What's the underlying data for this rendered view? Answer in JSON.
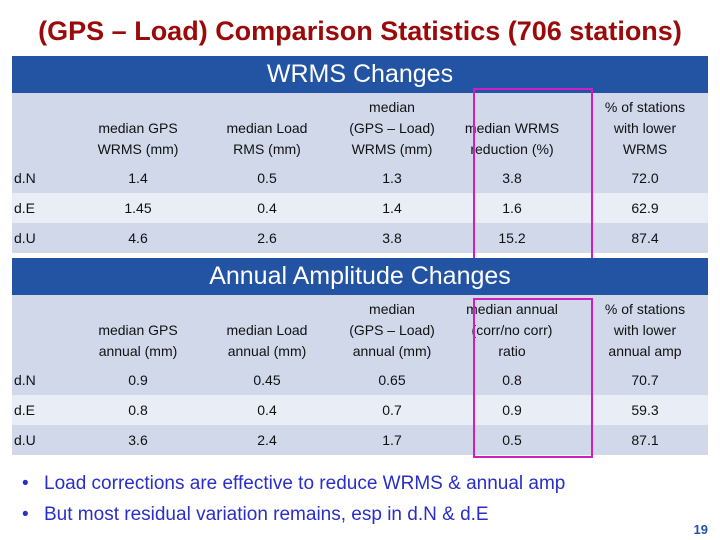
{
  "title": "(GPS – Load) Comparison Statistics (706 stations)",
  "wrms": {
    "section": "WRMS Changes",
    "headers": [
      "",
      "median GPS\nWRMS (mm)",
      "median Load\nRMS (mm)",
      "median\n(GPS – Load)\nWRMS (mm)",
      "median WRMS\nreduction (%)",
      "% of stations\nwith lower\nWRMS"
    ],
    "rows": [
      [
        "d.N",
        "1.4",
        "0.5",
        "1.3",
        "3.8",
        "72.0"
      ],
      [
        "d.E",
        "1.45",
        "0.4",
        "1.4",
        "1.6",
        "62.9"
      ],
      [
        "d.U",
        "4.6",
        "2.6",
        "3.8",
        "15.2",
        "87.4"
      ]
    ]
  },
  "annual": {
    "section": "Annual Amplitude Changes",
    "headers": [
      "",
      "median GPS\nannual (mm)",
      "median Load\nannual (mm)",
      "median\n(GPS – Load)\nannual (mm)",
      "median annual\n(corr/no corr)\nratio",
      "% of stations\nwith lower\nannual amp"
    ],
    "rows": [
      [
        "d.N",
        "0.9",
        "0.45",
        "0.65",
        "0.8",
        "70.7"
      ],
      [
        "d.E",
        "0.8",
        "0.4",
        "0.7",
        "0.9",
        "59.3"
      ],
      [
        "d.U",
        "3.6",
        "2.4",
        "1.7",
        "0.5",
        "87.1"
      ]
    ]
  },
  "bullets": [
    "Load corrections are effective to reduce WRMS & annual amp",
    "But most residual variation remains, esp in d.N & d.E"
  ],
  "bullet_symbol": "•",
  "page_number": "19",
  "colors": {
    "title": "#9a0a0a",
    "section_bar": "#2354a3",
    "table_dark": "#d0d8ea",
    "table_light": "#e9edf5",
    "highlight": "#cf1dbf",
    "bullets": "#2a2ec8"
  }
}
